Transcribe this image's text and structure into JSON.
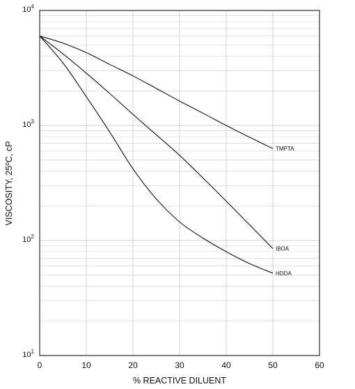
{
  "chart_data": {
    "type": "line",
    "title": "",
    "xlabel": "% REACTIVE DILUENT",
    "ylabel": "VISCOSITY, 25ºC, cP",
    "xlim": [
      0,
      60
    ],
    "ylim": [
      10,
      10000
    ],
    "yscale": "log",
    "grid": true,
    "x_ticks": [
      "0",
      "10",
      "20",
      "30",
      "40",
      "50",
      "60"
    ],
    "y_ticks": [
      {
        "value": 10,
        "base": "10",
        "exp": "1"
      },
      {
        "value": 100,
        "base": "10",
        "exp": "2"
      },
      {
        "value": 1000,
        "base": "10",
        "exp": "3"
      },
      {
        "value": 10000,
        "base": "10",
        "exp": "4"
      }
    ],
    "series": [
      {
        "name": "TMPTA",
        "x": [
          0,
          5,
          10,
          15,
          20,
          25,
          30,
          35,
          40,
          45,
          50
        ],
        "y": [
          6000,
          5200,
          4300,
          3400,
          2700,
          2100,
          1630,
          1280,
          1000,
          790,
          630
        ]
      },
      {
        "name": "IBOA",
        "x": [
          0,
          5,
          10,
          15,
          20,
          25,
          30,
          35,
          40,
          45,
          50
        ],
        "y": [
          6000,
          4200,
          2850,
          1900,
          1250,
          830,
          550,
          350,
          220,
          137,
          85
        ]
      },
      {
        "name": "HDDA",
        "x": [
          0,
          5,
          10,
          15,
          20,
          25,
          30,
          35,
          40,
          45,
          50
        ],
        "y": [
          6000,
          3500,
          1780,
          880,
          420,
          230,
          145,
          105,
          80,
          63,
          52
        ]
      }
    ]
  }
}
